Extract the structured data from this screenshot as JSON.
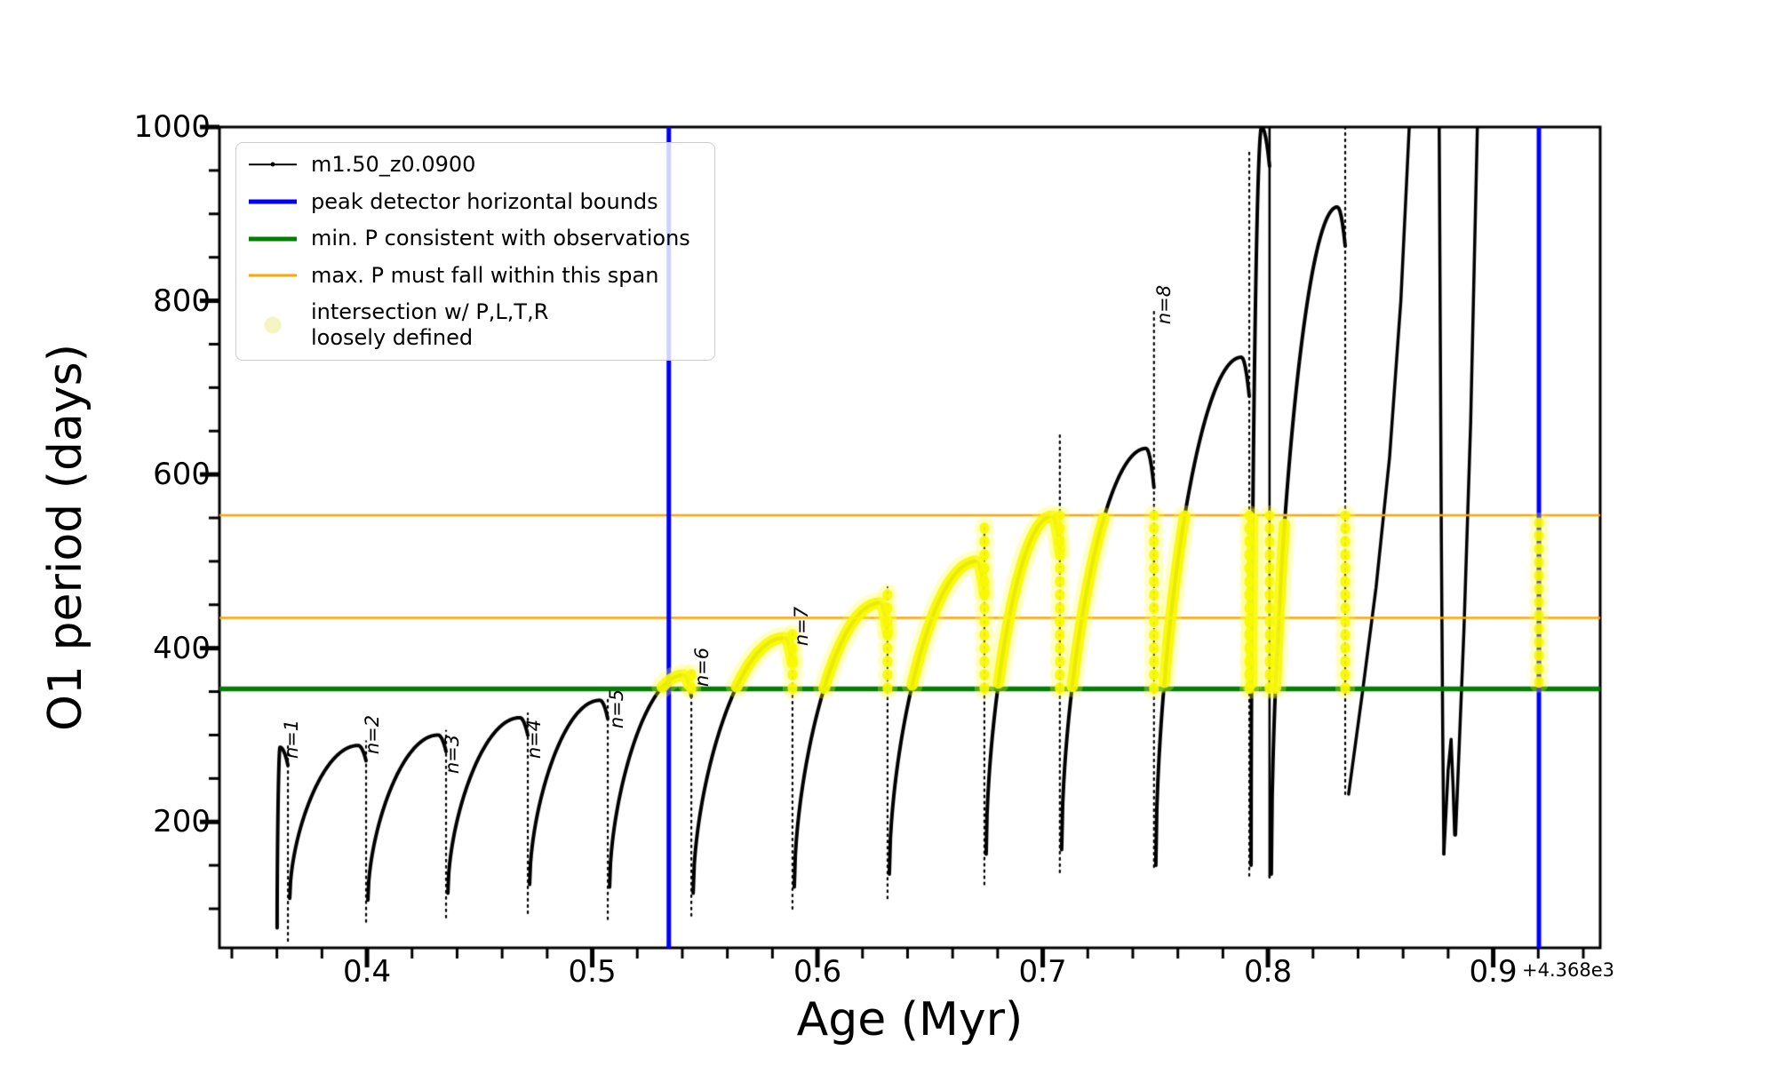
{
  "figure": {
    "xlabel": "Age (Myr)",
    "ylabel": "O1 period (days)",
    "x_offset_text": "+4.368e3",
    "background": "#ffffff"
  },
  "colors": {
    "series": "#000000",
    "blue_bounds": "#0000ff",
    "green_min": "#008000",
    "orange_span": "#ffa500",
    "yellow_core": "rgba(248,248,0,0.92)",
    "yellow_halo": "rgba(255,255,60,0.30)",
    "legend_marker_yellow": "#f5f5c2",
    "legend_border": "#cccccc"
  },
  "legend": {
    "entries": [
      {
        "label": "m1.50_z0.0900",
        "type": "line-marker",
        "color": "#000000",
        "lw": 1.6
      },
      {
        "label": "peak detector horizontal bounds",
        "type": "line",
        "color": "#0000ff",
        "lw": 5
      },
      {
        "label": "min. P consistent with observations",
        "type": "line",
        "color": "#008000",
        "lw": 5
      },
      {
        "label": "max. P must fall within this span",
        "type": "line",
        "color": "#ffa500",
        "lw": 3
      },
      {
        "label": "intersection w/ P,L,T,R\nloosely defined",
        "type": "marker",
        "color": "#f5f5c2"
      }
    ]
  },
  "chart_data": {
    "type": "line",
    "series_name": "m1.50_z0.0900",
    "xlabel": "Age (Myr)",
    "ylabel": "O1 period (days)",
    "x_offset": "+4.368e3",
    "xlim": [
      0.3345,
      0.9475
    ],
    "ylim": [
      55,
      1000
    ],
    "x_ticks": [
      0.4,
      0.5,
      0.6,
      0.7,
      0.8,
      0.9
    ],
    "y_ticks": [
      200,
      400,
      600,
      800,
      1000
    ],
    "x_minor_step": 0.02,
    "y_minor_step": 50,
    "grid": false,
    "legend_position": "upper left",
    "vlines_blue": [
      0.534,
      0.9203
    ],
    "hline_green": 353,
    "hlines_orange": [
      435,
      553
    ],
    "yellow_band": {
      "p_min": 353,
      "p_max": 553,
      "x_min": 0.531,
      "x_max": 0.922
    },
    "right_edge_dots": {
      "x": 0.9203,
      "p_min": 360,
      "p_max": 545
    },
    "cycles": [
      {
        "n": 1,
        "x_start": 0.3601,
        "y_start": 78,
        "x_drop": 0.3649,
        "peak": 286,
        "spike": 291,
        "drop_bottom": 63
      },
      {
        "n": 2,
        "x_start": 0.3657,
        "y_start": 112,
        "x_drop": 0.3996,
        "peak": 288,
        "spike": 293,
        "drop_bottom": 85
      },
      {
        "n": 3,
        "x_start": 0.4004,
        "y_start": 110,
        "x_drop": 0.4351,
        "peak": 300,
        "spike": 305,
        "drop_bottom": 90
      },
      {
        "n": 4,
        "x_start": 0.4359,
        "y_start": 118,
        "x_drop": 0.4714,
        "peak": 320,
        "spike": 325,
        "drop_bottom": 95
      },
      {
        "n": 5,
        "x_start": 0.4722,
        "y_start": 128,
        "x_drop": 0.5069,
        "peak": 340,
        "spike": 345,
        "drop_bottom": 88
      },
      {
        "n": 6,
        "x_start": 0.5077,
        "y_start": 125,
        "x_drop": 0.544,
        "peak": 369,
        "spike": 373,
        "drop_bottom": 92
      },
      {
        "n": 7,
        "x_start": 0.5448,
        "y_start": 118,
        "x_drop": 0.5889,
        "peak": 412,
        "spike": 417,
        "drop_bottom": 100
      },
      {
        "n": 8,
        "x_start": 0.5897,
        "y_start": 125,
        "x_drop": 0.6311,
        "peak": 452,
        "spike": 470,
        "drop_bottom": 112
      },
      {
        "n": 9,
        "x_start": 0.6319,
        "y_start": 140,
        "x_drop": 0.6741,
        "peak": 500,
        "spike": 543,
        "drop_bottom": 128
      },
      {
        "n": 10,
        "x_start": 0.6749,
        "y_start": 163,
        "x_drop": 0.7076,
        "peak": 552,
        "spike": 645,
        "drop_bottom": 142
      },
      {
        "n": 11,
        "x_start": 0.7084,
        "y_start": 168,
        "x_drop": 0.7494,
        "peak": 630,
        "spike": 788,
        "drop_bottom": 148
      },
      {
        "n": 12,
        "x_start": 0.7502,
        "y_start": 150,
        "x_drop": 0.7917,
        "peak": 735,
        "spike": 973,
        "drop_bottom": 138
      },
      {
        "n": 13,
        "x_start": 0.7925,
        "y_start": 150,
        "x_drop": 0.8007,
        "peak": 1000,
        "spike": 1005,
        "drop_bottom": 136,
        "solid_drop": true
      },
      {
        "n": 14,
        "x_start": 0.8015,
        "y_start": 140,
        "x_drop": 0.8343,
        "peak": 908,
        "spike": 1005,
        "drop_bottom": 232
      }
    ],
    "tail_segments": [
      [
        [
          0.8358,
          232
        ],
        [
          0.842,
          350
        ],
        [
          0.848,
          470
        ],
        [
          0.854,
          620
        ],
        [
          0.859,
          800
        ],
        [
          0.863,
          1015
        ]
      ],
      [
        [
          0.876,
          1015
        ],
        [
          0.877,
          520
        ],
        [
          0.8776,
          300
        ],
        [
          0.8781,
          163
        ]
      ],
      [
        [
          0.8781,
          163
        ],
        [
          0.88,
          260
        ],
        [
          0.8813,
          295
        ],
        [
          0.8822,
          240
        ],
        [
          0.8829,
          185
        ]
      ],
      [
        [
          0.8833,
          185
        ],
        [
          0.887,
          420
        ],
        [
          0.89,
          660
        ],
        [
          0.8931,
          1015
        ]
      ]
    ],
    "n_labels": [
      {
        "text": "n=1",
        "x": 0.3665,
        "y": 295
      },
      {
        "text": "n=2",
        "x": 0.4022,
        "y": 300
      },
      {
        "text": "n=3",
        "x": 0.4378,
        "y": 278
      },
      {
        "text": "n=4",
        "x": 0.474,
        "y": 295
      },
      {
        "text": "n=5",
        "x": 0.5108,
        "y": 330
      },
      {
        "text": "n=6",
        "x": 0.5487,
        "y": 378
      },
      {
        "text": "n=7",
        "x": 0.5928,
        "y": 425
      },
      {
        "text": "n=8",
        "x": 0.754,
        "y": 795
      }
    ]
  }
}
